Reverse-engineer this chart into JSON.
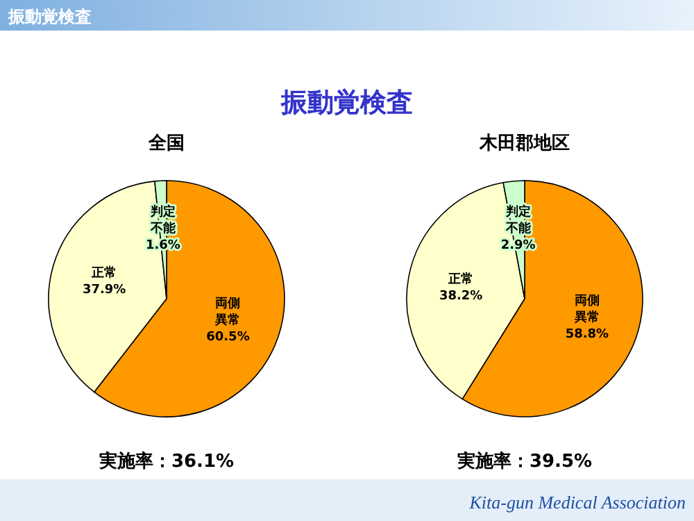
{
  "chart_data": [
    {
      "type": "other",
      "title": "振動覚検査",
      "annotations": [
        "振動覚検査",
        "Kita-gun Medical Association"
      ]
    },
    {
      "type": "pie",
      "title": "全国",
      "categories": [
        "両側異常",
        "正常",
        "判定不能"
      ],
      "values": [
        60.5,
        37.9,
        1.6
      ],
      "value_labels": [
        "60.5%",
        "37.9%",
        "1.6%"
      ],
      "colors": [
        "#ff9900",
        "#ffffcc",
        "#ccffcc"
      ],
      "annotations": [
        "実施率：36.1%"
      ]
    },
    {
      "type": "pie",
      "title": "木田郡地区",
      "categories": [
        "両側異常",
        "正常",
        "判定不能"
      ],
      "values": [
        58.8,
        38.2,
        2.9
      ],
      "value_labels": [
        "58.8%",
        "38.2%",
        "2.9%"
      ],
      "colors": [
        "#ff9900",
        "#ffffcc",
        "#ccffcc"
      ],
      "annotations": [
        "実施率：39.5%"
      ]
    }
  ]
}
